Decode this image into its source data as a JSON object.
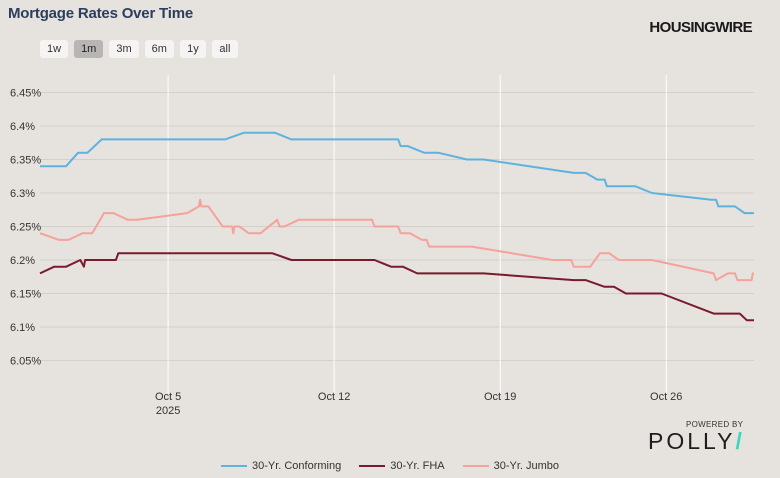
{
  "header": {
    "title": "Mortgage Rates Over Time",
    "brand": "HOUSINGWIRE"
  },
  "range_buttons": [
    "1w",
    "1m",
    "3m",
    "6m",
    "1y",
    "all"
  ],
  "selected_range": "1m",
  "footer": {
    "powered_by": "POWERED BY",
    "logo_text": "POLLY",
    "logo_slash": "/"
  },
  "chart_data": {
    "type": "line",
    "title": "Mortgage Rates Over Time",
    "xlabel": "",
    "ylabel": "",
    "x_ticks": [
      {
        "day": 5,
        "label": "Oct 5",
        "sublabel": "2025"
      },
      {
        "day": 12,
        "label": "Oct 12",
        "sublabel": ""
      },
      {
        "day": 19,
        "label": "Oct 19",
        "sublabel": ""
      },
      {
        "day": 26,
        "label": "Oct 26",
        "sublabel": ""
      }
    ],
    "x_range_days": [
      -0.4,
      29.7
    ],
    "y_ticks": [
      6.05,
      6.1,
      6.15,
      6.2,
      6.25,
      6.3,
      6.35,
      6.4,
      6.45
    ],
    "y_tick_labels": [
      "6.05%",
      "6.1%",
      "6.15%",
      "6.2%",
      "6.25%",
      "6.3%",
      "6.35%",
      "6.4%",
      "6.45%"
    ],
    "ylim": [
      6.0,
      6.5
    ],
    "grid": "horizontal",
    "legend_position": "bottom",
    "series": [
      {
        "name": "30-Yr. Conforming",
        "color": "#5db3de",
        "points": [
          [
            -0.4,
            6.34
          ],
          [
            0.7,
            6.34
          ],
          [
            1.2,
            6.36
          ],
          [
            1.6,
            6.36
          ],
          [
            2.2,
            6.38
          ],
          [
            7.4,
            6.38
          ],
          [
            8.2,
            6.39
          ],
          [
            9.5,
            6.39
          ],
          [
            10.2,
            6.38
          ],
          [
            14.7,
            6.38
          ],
          [
            14.8,
            6.37
          ],
          [
            15.1,
            6.37
          ],
          [
            15.8,
            6.36
          ],
          [
            16.4,
            6.36
          ],
          [
            17.6,
            6.35
          ],
          [
            18.3,
            6.35
          ],
          [
            22.1,
            6.33
          ],
          [
            22.6,
            6.33
          ],
          [
            23.1,
            6.32
          ],
          [
            23.4,
            6.32
          ],
          [
            23.5,
            6.31
          ],
          [
            24.7,
            6.31
          ],
          [
            25.4,
            6.3
          ],
          [
            27.9,
            6.29
          ],
          [
            28.1,
            6.29
          ],
          [
            28.2,
            6.28
          ],
          [
            28.9,
            6.28
          ],
          [
            29.3,
            6.27
          ],
          [
            29.7,
            6.27
          ]
        ]
      },
      {
        "name": "30-Yr. FHA",
        "color": "#7a1a2c",
        "points": [
          [
            -0.4,
            6.18
          ],
          [
            0.2,
            6.19
          ],
          [
            0.7,
            6.19
          ],
          [
            1.3,
            6.2
          ],
          [
            1.45,
            6.19
          ],
          [
            1.5,
            6.2
          ],
          [
            2.8,
            6.2
          ],
          [
            2.9,
            6.21
          ],
          [
            3.2,
            6.21
          ],
          [
            3.7,
            6.21
          ],
          [
            9.4,
            6.21
          ],
          [
            10.2,
            6.2
          ],
          [
            13.7,
            6.2
          ],
          [
            14.4,
            6.19
          ],
          [
            14.9,
            6.19
          ],
          [
            15.5,
            6.18
          ],
          [
            18.3,
            6.18
          ],
          [
            22.1,
            6.17
          ],
          [
            22.6,
            6.17
          ],
          [
            23.4,
            6.16
          ],
          [
            23.8,
            6.16
          ],
          [
            24.3,
            6.15
          ],
          [
            25.8,
            6.15
          ],
          [
            28.0,
            6.12
          ],
          [
            29.1,
            6.12
          ],
          [
            29.4,
            6.11
          ],
          [
            29.7,
            6.11
          ]
        ]
      },
      {
        "name": "30-Yr. Jumbo",
        "color": "#f5a29a",
        "points": [
          [
            -0.4,
            6.24
          ],
          [
            0.4,
            6.23
          ],
          [
            0.8,
            6.23
          ],
          [
            1.4,
            6.24
          ],
          [
            1.8,
            6.24
          ],
          [
            2.3,
            6.27
          ],
          [
            2.7,
            6.27
          ],
          [
            3.3,
            6.26
          ],
          [
            3.7,
            6.26
          ],
          [
            5.8,
            6.27
          ],
          [
            6.3,
            6.28
          ],
          [
            6.35,
            6.29
          ],
          [
            6.4,
            6.28
          ],
          [
            6.7,
            6.28
          ],
          [
            7.3,
            6.25
          ],
          [
            7.7,
            6.25
          ],
          [
            7.75,
            6.24
          ],
          [
            7.8,
            6.25
          ],
          [
            8.0,
            6.25
          ],
          [
            8.4,
            6.24
          ],
          [
            8.9,
            6.24
          ],
          [
            9.6,
            6.26
          ],
          [
            9.7,
            6.25
          ],
          [
            9.9,
            6.25
          ],
          [
            10.5,
            6.26
          ],
          [
            13.6,
            6.26
          ],
          [
            13.7,
            6.25
          ],
          [
            14.7,
            6.25
          ],
          [
            14.8,
            6.24
          ],
          [
            15.2,
            6.24
          ],
          [
            15.7,
            6.23
          ],
          [
            15.9,
            6.23
          ],
          [
            16.0,
            6.22
          ],
          [
            17.8,
            6.22
          ],
          [
            21.2,
            6.2
          ],
          [
            22.0,
            6.2
          ],
          [
            22.1,
            6.19
          ],
          [
            22.8,
            6.19
          ],
          [
            23.0,
            6.2
          ],
          [
            23.2,
            6.21
          ],
          [
            23.6,
            6.21
          ],
          [
            24.0,
            6.2
          ],
          [
            25.4,
            6.2
          ],
          [
            28.0,
            6.18
          ],
          [
            28.1,
            6.17
          ],
          [
            28.6,
            6.18
          ],
          [
            28.9,
            6.18
          ],
          [
            29.0,
            6.17
          ],
          [
            29.6,
            6.17
          ],
          [
            29.65,
            6.18
          ],
          [
            29.7,
            6.18
          ]
        ]
      }
    ]
  }
}
